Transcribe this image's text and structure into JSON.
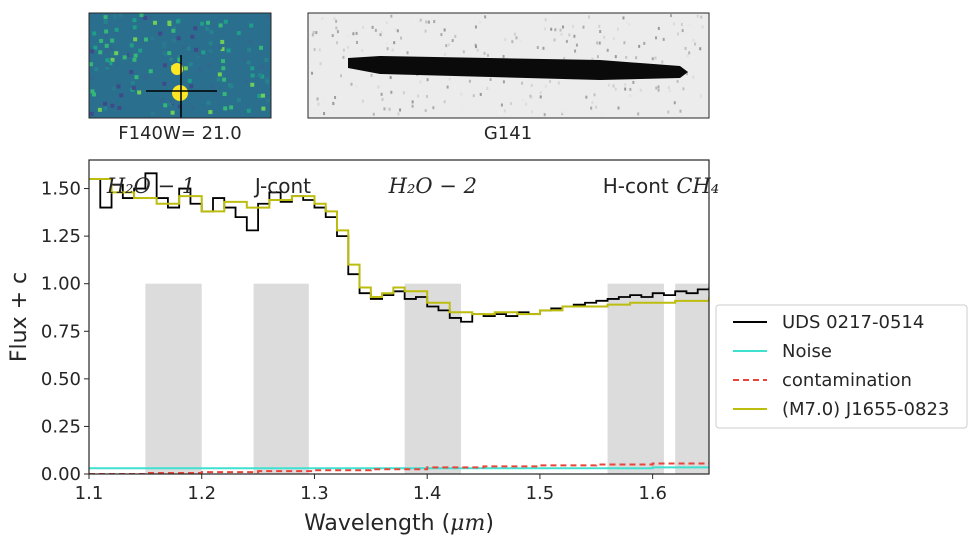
{
  "panels": {
    "direct_image_caption": "F140W= 21.0",
    "grism_image_caption": "G141"
  },
  "chart_data": {
    "type": "line",
    "xlabel_prefix": "Wavelength (",
    "xlabel_unit": "μm",
    "xlabel_suffix": ")",
    "ylabel": "Flux + c",
    "xlim": [
      1.1,
      1.65
    ],
    "ylim": [
      0.0,
      1.65
    ],
    "xticks": [
      "1.1",
      "1.2",
      "1.3",
      "1.4",
      "1.5",
      "1.6"
    ],
    "yticks": [
      "0.00",
      "0.25",
      "0.50",
      "0.75",
      "1.00",
      "1.25",
      "1.50"
    ],
    "grid": false,
    "legend_position": "right",
    "band_labels": [
      {
        "text": "H₂O − 1",
        "style": "italic",
        "x": 1.155
      },
      {
        "text": "J-cont",
        "style": "normal",
        "x": 1.272
      },
      {
        "text": "H₂O − 2",
        "style": "italic",
        "x": 1.405
      },
      {
        "text": "H-cont",
        "style": "normal",
        "x": 1.585
      },
      {
        "text": "CH₄",
        "style": "italic",
        "x": 1.64
      }
    ],
    "shaded_bands": [
      {
        "x0": 1.15,
        "x1": 1.2,
        "y_top": 1.0
      },
      {
        "x0": 1.246,
        "x1": 1.295,
        "y_top": 1.0
      },
      {
        "x0": 1.38,
        "x1": 1.43,
        "y_top": 1.0
      },
      {
        "x0": 1.56,
        "x1": 1.61,
        "y_top": 1.0
      },
      {
        "x0": 1.62,
        "x1": 1.67,
        "y_top": 1.0
      }
    ],
    "series": [
      {
        "name": "UDS 0217-0514",
        "color": "#000000",
        "style": "solid",
        "step": true,
        "x": [
          1.1,
          1.11,
          1.12,
          1.13,
          1.14,
          1.15,
          1.16,
          1.17,
          1.18,
          1.19,
          1.2,
          1.21,
          1.22,
          1.23,
          1.24,
          1.25,
          1.26,
          1.27,
          1.28,
          1.29,
          1.3,
          1.31,
          1.32,
          1.33,
          1.34,
          1.35,
          1.36,
          1.37,
          1.38,
          1.39,
          1.4,
          1.41,
          1.42,
          1.43,
          1.44,
          1.45,
          1.46,
          1.47,
          1.48,
          1.49,
          1.5,
          1.51,
          1.52,
          1.53,
          1.54,
          1.55,
          1.56,
          1.57,
          1.58,
          1.59,
          1.6,
          1.61,
          1.62,
          1.63,
          1.64,
          1.65
        ],
        "y": [
          1.55,
          1.4,
          1.52,
          1.45,
          1.5,
          1.58,
          1.45,
          1.4,
          1.5,
          1.42,
          1.38,
          1.45,
          1.4,
          1.35,
          1.28,
          1.42,
          1.48,
          1.43,
          1.46,
          1.44,
          1.4,
          1.35,
          1.25,
          1.05,
          0.95,
          0.92,
          0.94,
          0.96,
          0.92,
          0.93,
          0.88,
          0.86,
          0.82,
          0.8,
          0.84,
          0.83,
          0.84,
          0.83,
          0.85,
          0.84,
          0.86,
          0.87,
          0.88,
          0.89,
          0.9,
          0.91,
          0.92,
          0.93,
          0.94,
          0.93,
          0.95,
          0.94,
          0.96,
          0.95,
          0.97,
          0.98
        ]
      },
      {
        "name": "Noise",
        "color": "#40e0d0",
        "style": "solid",
        "step": true,
        "x": [
          1.1,
          1.15,
          1.2,
          1.25,
          1.3,
          1.35,
          1.4,
          1.45,
          1.5,
          1.55,
          1.6,
          1.65
        ],
        "y": [
          0.03,
          0.03,
          0.03,
          0.03,
          0.03,
          0.03,
          0.03,
          0.03,
          0.03,
          0.03,
          0.035,
          0.03
        ]
      },
      {
        "name": "contamination",
        "color": "#e8443a",
        "style": "dashed",
        "step": true,
        "x": [
          1.1,
          1.15,
          1.2,
          1.25,
          1.3,
          1.35,
          1.4,
          1.45,
          1.5,
          1.55,
          1.6,
          1.65
        ],
        "y": [
          0.0,
          0.005,
          0.01,
          0.015,
          0.02,
          0.025,
          0.035,
          0.04,
          0.045,
          0.05,
          0.055,
          0.06
        ]
      },
      {
        "name": "(M7.0) J1655-0823",
        "color": "#bdbd10",
        "style": "solid",
        "step": true,
        "x": [
          1.1,
          1.12,
          1.14,
          1.16,
          1.18,
          1.2,
          1.22,
          1.24,
          1.26,
          1.28,
          1.3,
          1.31,
          1.32,
          1.33,
          1.34,
          1.35,
          1.36,
          1.37,
          1.38,
          1.4,
          1.42,
          1.44,
          1.46,
          1.48,
          1.5,
          1.52,
          1.54,
          1.56,
          1.58,
          1.6,
          1.62,
          1.65
        ],
        "y": [
          1.55,
          1.48,
          1.45,
          1.42,
          1.46,
          1.38,
          1.43,
          1.4,
          1.44,
          1.46,
          1.42,
          1.38,
          1.28,
          1.1,
          0.98,
          0.93,
          0.95,
          0.98,
          0.96,
          0.9,
          0.85,
          0.84,
          0.85,
          0.84,
          0.86,
          0.88,
          0.88,
          0.89,
          0.9,
          0.9,
          0.91,
          0.93
        ]
      }
    ]
  },
  "colors": {
    "band_fill": "#dcdcdc",
    "axes": "#262626",
    "background": "#ffffff"
  }
}
